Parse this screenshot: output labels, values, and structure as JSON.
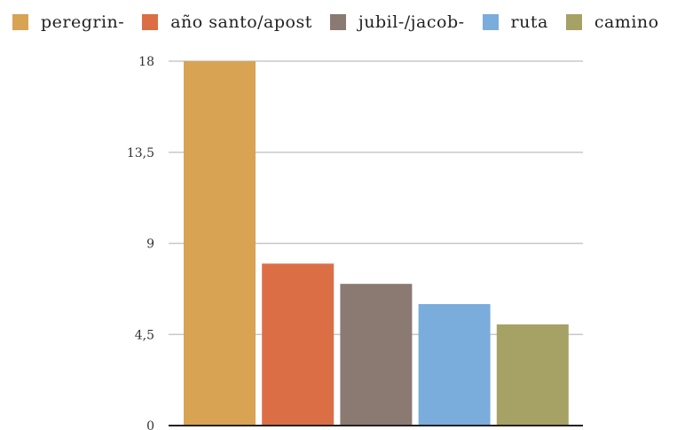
{
  "chart_data": {
    "type": "bar",
    "categories": [
      "peregrin-",
      "año santo/apost",
      "jubil-/jacob-",
      "ruta",
      "camino"
    ],
    "values": [
      18,
      8,
      7,
      6,
      5
    ],
    "colors": [
      "#d9a354",
      "#dc6e45",
      "#8a7a72",
      "#7aaddc",
      "#a6a165"
    ],
    "ylim": [
      0,
      18
    ],
    "yticks": [
      "0",
      "4,5",
      "9",
      "13,5",
      "18"
    ],
    "grid": true,
    "legend_position": "top"
  }
}
